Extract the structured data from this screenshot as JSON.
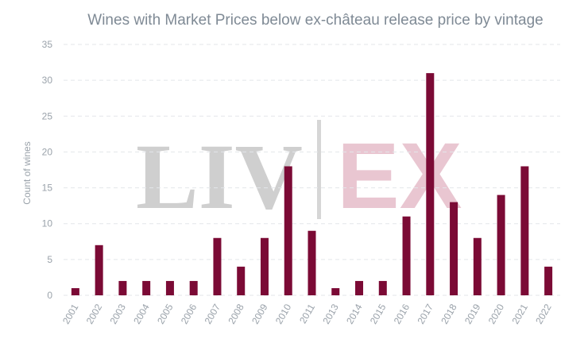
{
  "watermark": {
    "left_text": "LIV",
    "right_text": "EX"
  },
  "chart_data": {
    "type": "bar",
    "title": "Wines with Market Prices below ex-château release price by vintage",
    "xlabel": "",
    "ylabel": "Count of wines",
    "categories": [
      "2001",
      "2002",
      "2003",
      "2004",
      "2005",
      "2006",
      "2007",
      "2008",
      "2009",
      "2010",
      "2011",
      "2013",
      "2014",
      "2015",
      "2016",
      "2017",
      "2018",
      "2019",
      "2020",
      "2021",
      "2022"
    ],
    "values": [
      1,
      7,
      2,
      2,
      2,
      2,
      8,
      4,
      8,
      18,
      9,
      1,
      2,
      2,
      11,
      31,
      13,
      8,
      14,
      18,
      4
    ],
    "ylim": [
      0,
      35
    ],
    "yticks": [
      0,
      5,
      10,
      15,
      20,
      25,
      30,
      35
    ],
    "grid": true,
    "legend": "none",
    "bar_color": "#7b0a35"
  }
}
